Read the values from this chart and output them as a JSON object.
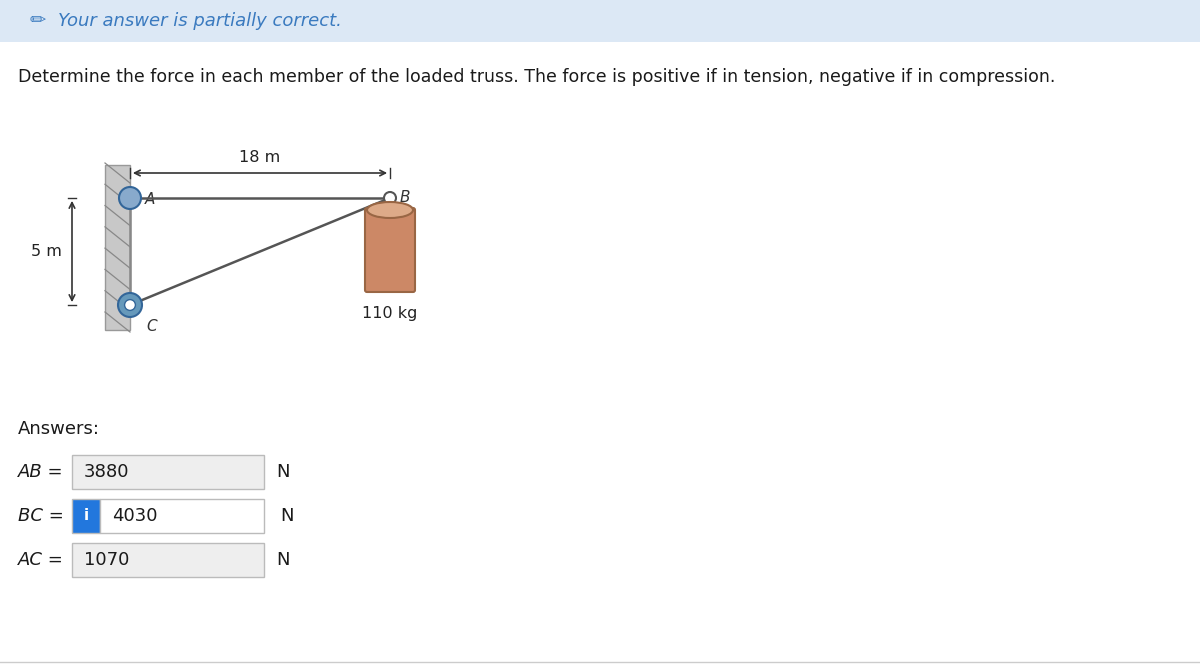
{
  "banner_text": "Your answer is partially correct.",
  "banner_bg": "#dce8f5",
  "banner_icon_color": "#3a7abf",
  "problem_text": "Determine the force in each member of the loaded truss. The force is positive if in tension, negative if in compression.",
  "truss": {
    "dim_18m_label": "18 m",
    "dim_5m_label": "5 m",
    "load_label": "110 kg",
    "wall_color": "#b0b0b0",
    "truss_line_color": "#555555",
    "pin_A_color": "#88aacc",
    "pin_C_color": "#6699bb",
    "weight_body_color": "#cc8866",
    "weight_top_color": "#ddaa88",
    "weight_edge_color": "#996644"
  },
  "answers_label": "Answers:",
  "rows": [
    {
      "label": "AB =",
      "value": "3880",
      "unit": "N",
      "has_icon": false,
      "box_bg": "#eeeeee",
      "box_border": "#bbbbbb"
    },
    {
      "label": "BC =",
      "value": "4030",
      "unit": "N",
      "has_icon": true,
      "box_bg": "#ffffff",
      "box_border": "#bbbbbb",
      "icon_bg": "#2277dd"
    },
    {
      "label": "AC =",
      "value": "1070",
      "unit": "N",
      "has_icon": false,
      "box_bg": "#eeeeee",
      "box_border": "#bbbbbb"
    }
  ]
}
